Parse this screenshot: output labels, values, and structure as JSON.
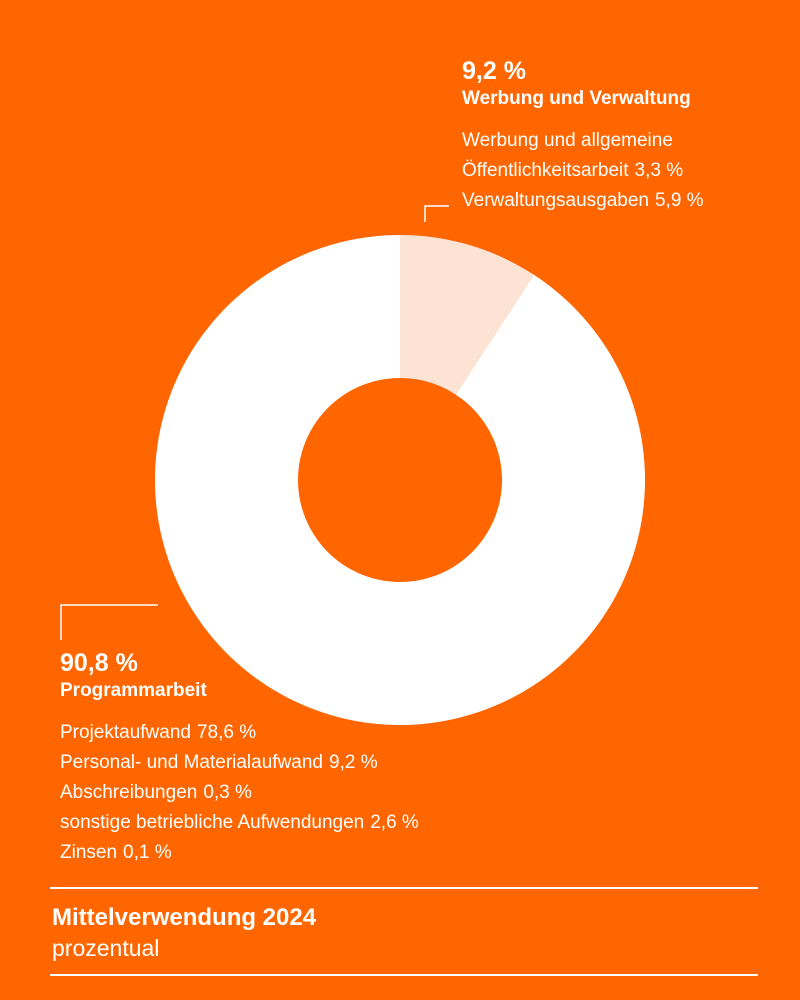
{
  "chart_data": {
    "type": "pie",
    "donut": true,
    "title": "Mittelverwendung 2024",
    "subtitle": "prozentual",
    "segments": [
      {
        "value": 9.2,
        "label_value": "9,2 %",
        "label": "Werbung und Verwaltung",
        "color": "#FCE3D4",
        "items": [
          {
            "text": "Werbung und allgemeine",
            "value": ""
          },
          {
            "text": "Öffentlichkeitsarbeit",
            "value": "3,3 %"
          },
          {
            "text": "Verwaltungsausgaben",
            "value": "5,9 %"
          }
        ]
      },
      {
        "value": 90.8,
        "label_value": "90,8 %",
        "label": "Programmarbeit",
        "color": "#FFFFFF",
        "items": [
          {
            "text": "Projektaufwand",
            "value": "78,6 %"
          },
          {
            "text": "Personal- und Materialaufwand",
            "value": "9,2 %"
          },
          {
            "text": "Abschreibungen",
            "value": "0,3 %"
          },
          {
            "text": "sonstige betriebliche Aufwendungen",
            "value": "2,6 %"
          },
          {
            "text": "Zinsen",
            "value": "0,1 %"
          }
        ]
      }
    ]
  },
  "colors": {
    "background": "#FF6600",
    "text": "#FFFFFF"
  }
}
